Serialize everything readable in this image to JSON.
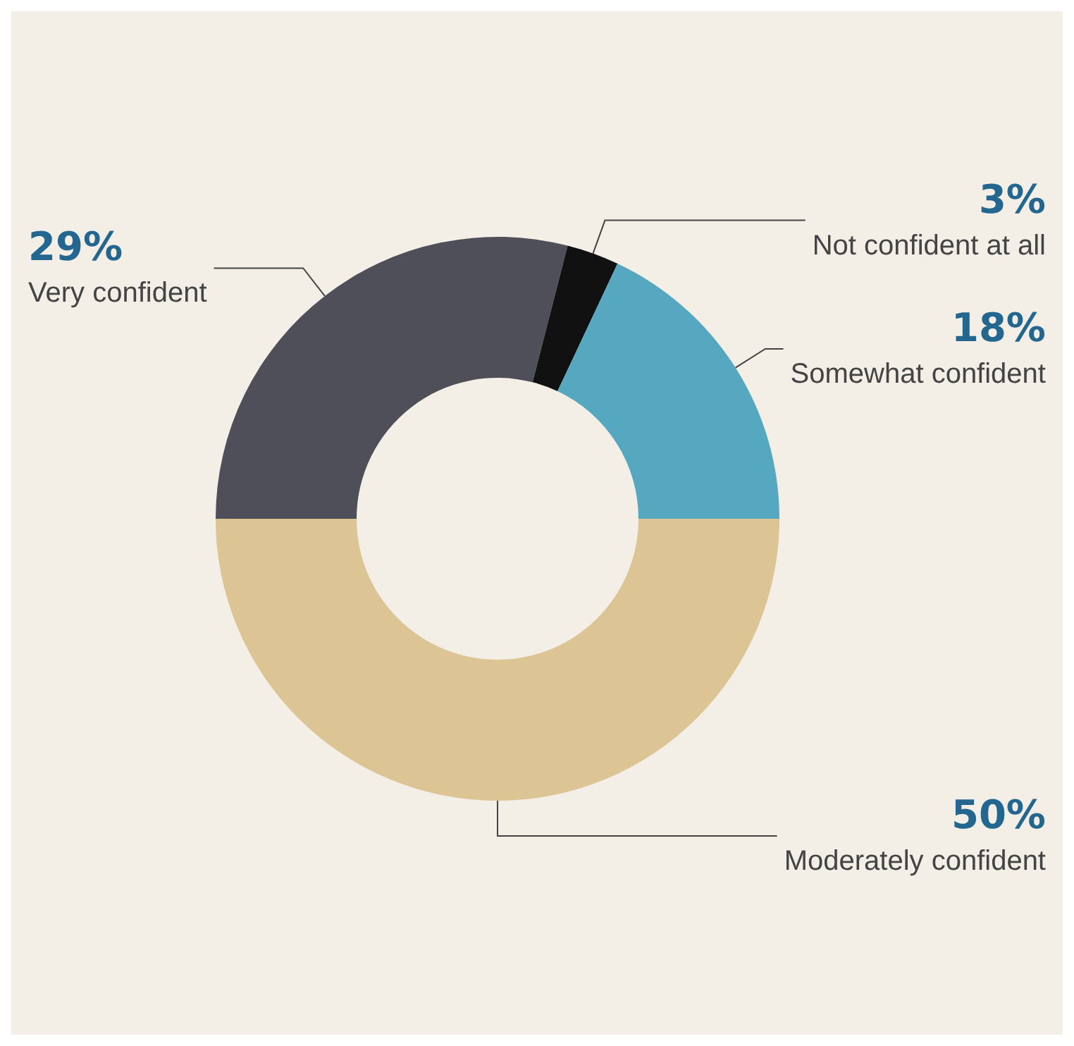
{
  "chart_data": {
    "type": "donut",
    "categories": [
      "Very confident",
      "Not confident at all",
      "Somewhat confident",
      "Moderately confident"
    ],
    "values": [
      29,
      3,
      18,
      50
    ],
    "value_labels": [
      "29%",
      "3%",
      "18%",
      "50%"
    ],
    "colors": [
      "#4f4f59",
      "#111111",
      "#56a8c1",
      "#dcc494"
    ]
  }
}
